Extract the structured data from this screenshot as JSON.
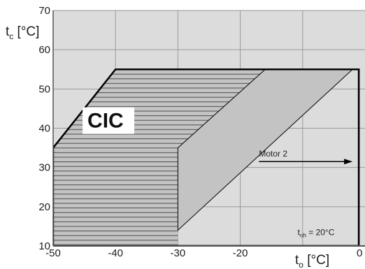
{
  "chart_data": {
    "type": "area",
    "xlabel": {
      "main": "t",
      "sub": "o",
      "unit": " [°C]"
    },
    "ylabel": {
      "main": "t",
      "sub": "c",
      "unit": " [°C]"
    },
    "xlim": [
      -50,
      0
    ],
    "ylim": [
      10,
      70
    ],
    "x_ticks": [
      -50,
      -40,
      -30,
      -20,
      -10
    ],
    "x_tick_labels": [
      "-50",
      "-40",
      "-30",
      "-20",
      ""
    ],
    "x_edge_label": "0",
    "y_ticks": [
      10,
      20,
      30,
      40,
      50,
      60,
      70
    ],
    "y_tick_labels": [
      "10",
      "20",
      "30",
      "40",
      "50",
      "60",
      "70"
    ],
    "grid": true,
    "series": [
      {
        "role": "envelope",
        "polygon": [
          [
            -50,
            35
          ],
          [
            -40,
            55
          ],
          [
            -1,
            55
          ],
          [
            -1,
            10
          ],
          [
            -50,
            10
          ]
        ]
      },
      {
        "role": "hatched-band",
        "polygon": [
          [
            -50,
            35
          ],
          [
            -40,
            55
          ],
          [
            -16,
            55
          ],
          [
            -30,
            35
          ],
          [
            -30,
            10
          ],
          [
            -50,
            10
          ]
        ]
      },
      {
        "role": "dark-band",
        "polygon": [
          [
            -30,
            35
          ],
          [
            -16,
            55
          ],
          [
            -2,
            55
          ],
          [
            -30,
            14
          ]
        ]
      }
    ],
    "annotations": {
      "motor_label": "Motor 2",
      "motor_arrow": {
        "from": [
          -17,
          31.5
        ],
        "to": [
          -2,
          31.5
        ]
      },
      "toh": {
        "main": "t",
        "sub": "oh",
        "rest": " = 20°C"
      }
    },
    "logo": {
      "text": "CIC"
    }
  },
  "colors": {
    "background": "#ffffff",
    "plot_area": "#dcdcdc",
    "band_fill": "#c3c3c3",
    "grid": "#9a9a9a",
    "hatch": "#4d4d4d",
    "outline": "#000000"
  }
}
